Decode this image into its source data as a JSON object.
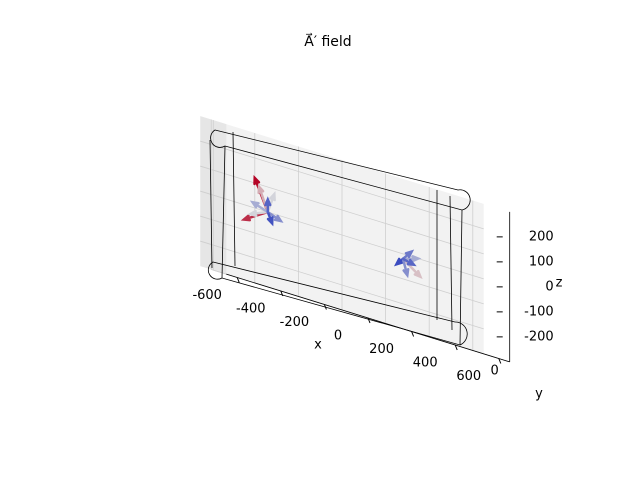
{
  "chart_data": {
    "type": "quiver3d",
    "title": "A⃗′ field",
    "xlabel": "x",
    "ylabel": "y",
    "zlabel": "z",
    "xlim": [
      -650,
      650
    ],
    "ylim": [
      -100,
      100
    ],
    "zlim": [
      -300,
      300
    ],
    "xticks": [
      -600,
      -400,
      -200,
      0,
      200,
      400,
      600
    ],
    "yticks": [
      0
    ],
    "zticks": [
      -200,
      -100,
      0,
      100,
      200
    ],
    "grid": true,
    "colormap": "coolwarm",
    "x": [
      -400,
      -400,
      -400,
      -400,
      -400,
      -400,
      -400,
      -400,
      -400,
      220,
      220,
      220,
      220,
      220,
      220
    ],
    "y": [
      0,
      0,
      0,
      0,
      0,
      0,
      0,
      0,
      0,
      0,
      0,
      0,
      0,
      0,
      0
    ],
    "z": [
      0,
      0,
      0,
      0,
      0,
      0,
      0,
      0,
      0,
      -20,
      -20,
      -20,
      -20,
      -20,
      -20
    ],
    "u": [
      -60,
      -40,
      60,
      -110,
      -80,
      30,
      -70,
      20,
      0,
      80,
      70,
      40,
      -30,
      20,
      50
    ],
    "v": [
      0,
      0,
      0,
      0,
      0,
      0,
      0,
      0,
      0,
      0,
      0,
      0,
      0,
      0,
      0
    ],
    "w": [
      120,
      90,
      -20,
      -60,
      -30,
      80,
      20,
      -40,
      50,
      -50,
      20,
      40,
      -30,
      -60,
      -10
    ]
  }
}
